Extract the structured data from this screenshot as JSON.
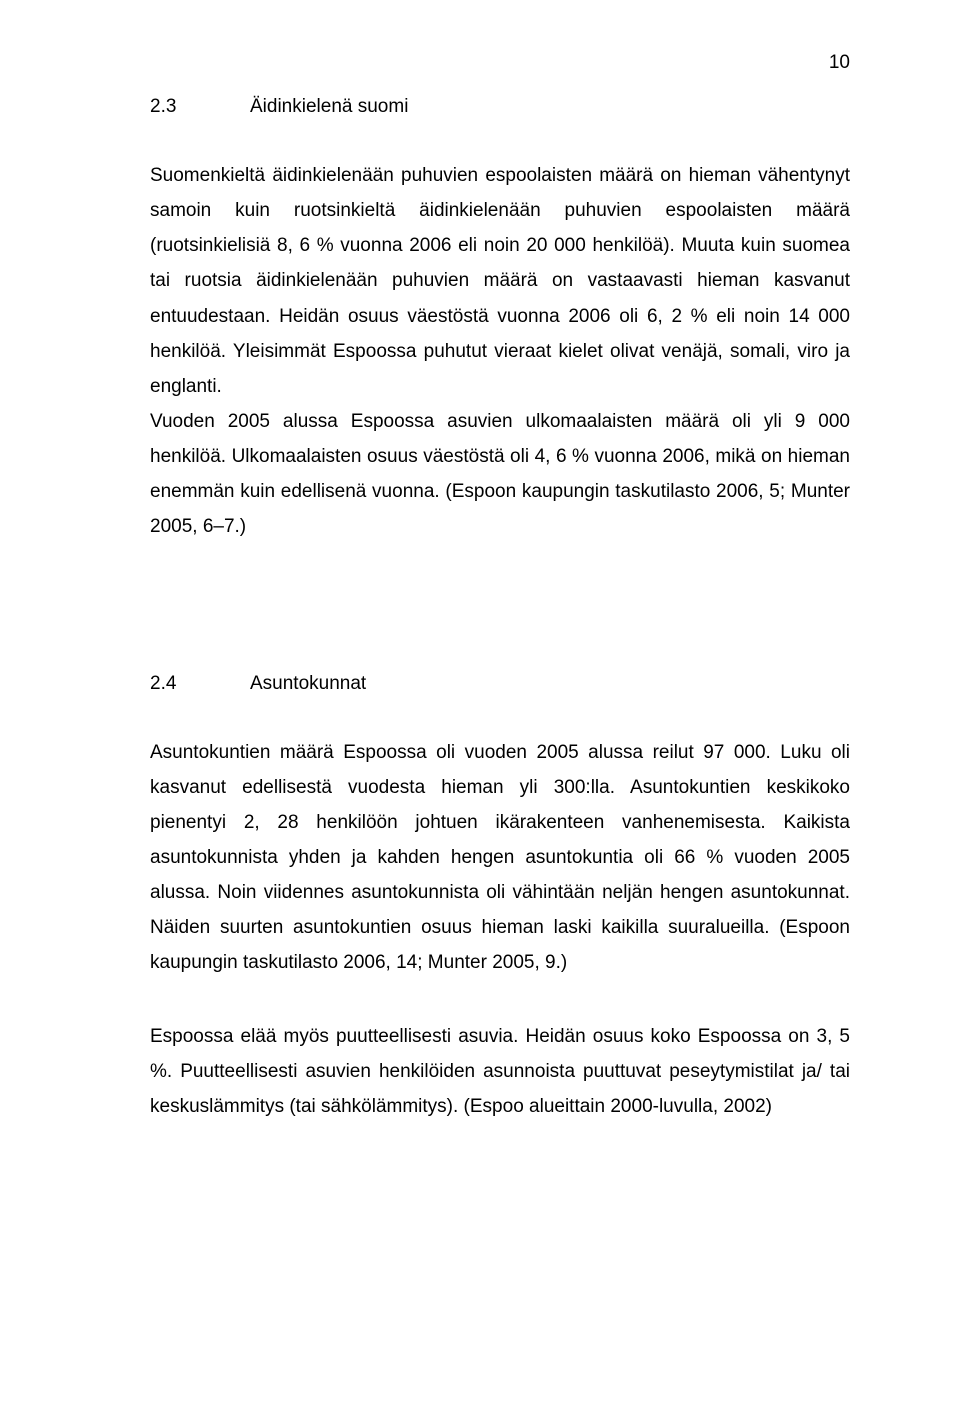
{
  "page": {
    "number": "10"
  },
  "section1": {
    "number": "2.3",
    "title": "Äidinkielenä suomi",
    "para1": "Suomenkieltä äidinkielenään puhuvien espoolaisten määrä on hieman vähentynyt samoin kuin ruotsinkieltä äidinkielenään puhuvien espoolaisten määrä (ruotsinkielisiä 8, 6 % vuonna 2006 eli noin 20 000 henkilöä). Muuta kuin suomea tai ruotsia äidinkielenään puhuvien määrä on vastaavasti hieman kasvanut entuudestaan. Heidän osuus väestöstä vuonna 2006 oli 6, 2 % eli noin 14 000 henkilöä. Yleisimmät Espoossa puhutut vieraat kielet olivat venäjä, somali, viro ja englanti.",
    "para2": "Vuoden 2005 alussa Espoossa asuvien ulkomaalaisten määrä oli yli 9 000 henkilöä. Ulkomaalaisten osuus väestöstä oli 4, 6 % vuonna 2006, mikä on hieman enemmän kuin edellisenä vuonna. (Espoon kaupungin taskutilasto 2006, 5; Munter 2005, 6–7.)"
  },
  "section2": {
    "number": "2.4",
    "title": "Asuntokunnat",
    "para1": "Asuntokuntien määrä Espoossa oli vuoden 2005 alussa reilut 97 000. Luku oli kasvanut edellisestä vuodesta hieman yli 300:lla. Asuntokuntien keskikoko pienentyi 2, 28 henkilöön johtuen ikärakenteen vanhenemisesta. Kaikista asuntokunnista yhden ja kahden hengen asuntokuntia oli 66 % vuoden 2005 alussa. Noin viidennes asuntokunnista oli vähintään neljän hengen asuntokunnat. Näiden suurten asuntokuntien osuus hieman laski kaikilla suuralueilla. (Espoon kaupungin taskutilasto 2006, 14; Munter 2005, 9.)",
    "para2": "Espoossa elää myös puutteellisesti asuvia. Heidän osuus koko Espoossa on 3, 5 %. Puutteellisesti asuvien henkilöiden asunnoista puuttuvat peseytymistilat ja/ tai keskuslämmitys (tai sähkölämmitys). (Espoo alueittain 2000-luvulla, 2002)"
  }
}
